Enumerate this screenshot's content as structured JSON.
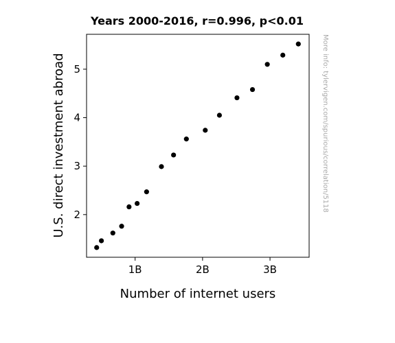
{
  "chart_data": {
    "type": "scatter",
    "title": "Years 2000-2016, r=0.996, p<0.01",
    "xlabel": "Number of internet users",
    "ylabel": "U.S. direct investment abroad",
    "xlim": [
      0.28,
      3.58
    ],
    "ylim": [
      1.12,
      5.72
    ],
    "x_ticks": [
      {
        "value": 1,
        "label": "1B"
      },
      {
        "value": 2,
        "label": "2B"
      },
      {
        "value": 3,
        "label": "3B"
      }
    ],
    "y_ticks": [
      {
        "value": 2,
        "label": "2"
      },
      {
        "value": 3,
        "label": "3"
      },
      {
        "value": 4,
        "label": "4"
      },
      {
        "value": 5,
        "label": "5"
      }
    ],
    "grid": false,
    "marker_color": "#000000",
    "series": [
      {
        "points": [
          {
            "x": 0.43,
            "y": 1.32
          },
          {
            "x": 0.5,
            "y": 1.46
          },
          {
            "x": 0.67,
            "y": 1.62
          },
          {
            "x": 0.8,
            "y": 1.76
          },
          {
            "x": 0.91,
            "y": 2.16
          },
          {
            "x": 1.03,
            "y": 2.23
          },
          {
            "x": 1.17,
            "y": 2.47
          },
          {
            "x": 1.39,
            "y": 2.99
          },
          {
            "x": 1.57,
            "y": 3.23
          },
          {
            "x": 1.76,
            "y": 3.56
          },
          {
            "x": 2.04,
            "y": 3.74
          },
          {
            "x": 2.25,
            "y": 4.05
          },
          {
            "x": 2.51,
            "y": 4.41
          },
          {
            "x": 2.74,
            "y": 4.58
          },
          {
            "x": 2.96,
            "y": 5.1
          },
          {
            "x": 3.19,
            "y": 5.29
          },
          {
            "x": 3.42,
            "y": 5.52
          }
        ]
      }
    ],
    "annotation": "More info: tylervigen.com/spurious/correlation/5118"
  }
}
